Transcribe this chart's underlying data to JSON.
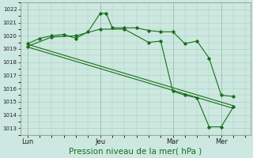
{
  "bg_color": "#cce8e0",
  "grid_color": "#aaccbb",
  "line_color": "#1a6e1a",
  "marker_color": "#1a6e1a",
  "xlabel": "Pression niveau de la mer( hPa )",
  "xlabel_fontsize": 7.5,
  "ylim": [
    1012.5,
    1022.5
  ],
  "yticks": [
    1013,
    1014,
    1015,
    1016,
    1017,
    1018,
    1019,
    1020,
    1021,
    1022
  ],
  "xtick_labels": [
    "Lun",
    "Jeu",
    "Mar",
    "Mer"
  ],
  "xtick_positions": [
    0,
    3,
    6,
    8
  ],
  "xlim": [
    -0.3,
    9.2
  ],
  "series1_x": [
    0,
    0.5,
    1,
    1.5,
    2,
    2.5,
    3,
    3.25,
    3.5,
    4,
    4.5,
    5,
    5.5,
    6,
    6.5,
    7,
    7.5,
    8,
    8.5
  ],
  "series1_y": [
    1019.4,
    1019.8,
    1020.0,
    1020.1,
    1019.8,
    1020.3,
    1021.7,
    1021.7,
    1020.6,
    1020.6,
    1020.6,
    1020.4,
    1020.3,
    1020.3,
    1019.4,
    1019.6,
    1018.3,
    1015.5,
    1015.4
  ],
  "series2_x": [
    0,
    1,
    2,
    3,
    4,
    5,
    5.5,
    6,
    6.5,
    7,
    7.5,
    8,
    8.5
  ],
  "series2_y": [
    1019.2,
    1019.9,
    1020.0,
    1020.5,
    1020.5,
    1019.5,
    1019.6,
    1015.8,
    1015.5,
    1015.3,
    1013.1,
    1013.1,
    1014.6
  ],
  "series3_x": [
    0,
    8.5
  ],
  "series3_y": [
    1019.35,
    1014.7
  ],
  "series4_x": [
    0,
    8.5
  ],
  "series4_y": [
    1019.15,
    1014.5
  ]
}
